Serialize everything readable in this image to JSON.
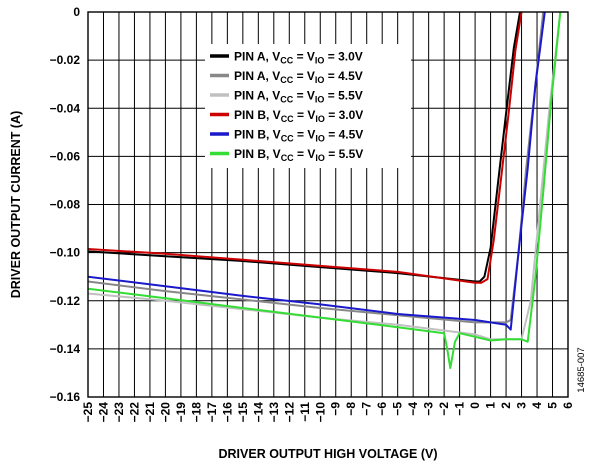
{
  "chart_data": {
    "type": "line",
    "xlabel": "DRIVER OUTPUT HIGH VOLTAGE (V)",
    "ylabel": "DRIVER OUTPUT CURRENT (A)",
    "xlim": [
      -25,
      6
    ],
    "ylim": [
      -0.16,
      0
    ],
    "x_ticks": [
      -25,
      -24,
      -23,
      -22,
      -21,
      -20,
      -19,
      -18,
      -17,
      -16,
      -15,
      -14,
      -13,
      -12,
      -11,
      -10,
      -9,
      -8,
      -7,
      -6,
      -5,
      -4,
      -3,
      -2,
      -1,
      0,
      1,
      2,
      3,
      4,
      5,
      6
    ],
    "x_tick_labels": [
      "−25",
      "−24",
      "−23",
      "−22",
      "−21",
      "−20",
      "−19",
      "−18",
      "−17",
      "−16",
      "−15",
      "−14",
      "−13",
      "−12",
      "−11",
      "−10",
      "−9",
      "−8",
      "−7",
      "−6",
      "−5",
      "−4",
      "−3",
      "−2",
      "−1",
      "0",
      "1",
      "2",
      "3",
      "4",
      "5",
      "6"
    ],
    "y_ticks": [
      0,
      -0.02,
      -0.04,
      -0.06,
      -0.08,
      -0.1,
      -0.12,
      -0.14,
      -0.16
    ],
    "y_tick_labels": [
      "0",
      "−0.02",
      "−0.04",
      "−0.06",
      "−0.08",
      "−0.10",
      "−0.12",
      "−0.14",
      "−0.16"
    ],
    "grid": true,
    "legend_position": "top-center",
    "figure_id": "14685-007",
    "series": [
      {
        "name": "PIN A, VCC = VIO = 3.0V",
        "name_parts": [
          "PIN A, V",
          "CC",
          " = V",
          "IO",
          " = 3.0V"
        ],
        "color": "#000000",
        "x": [
          -25,
          -20,
          -15,
          -10,
          -5,
          0,
          0.3,
          0.6,
          1.0,
          1.5,
          2.0,
          2.5,
          2.9
        ],
        "y": [
          -0.0995,
          -0.1015,
          -0.1035,
          -0.106,
          -0.1085,
          -0.112,
          -0.112,
          -0.11,
          -0.098,
          -0.07,
          -0.042,
          -0.015,
          0.0
        ]
      },
      {
        "name": "PIN A, VCC = VIO = 4.5V",
        "name_parts": [
          "PIN A, V",
          "CC",
          " = V",
          "IO",
          " = 4.5V"
        ],
        "color": "#888888",
        "x": [
          -25,
          -20,
          -15,
          -10,
          -5,
          0,
          1.0,
          2.0,
          2.3,
          2.8,
          3.3,
          3.9,
          4.4
        ],
        "y": [
          -0.112,
          -0.116,
          -0.1195,
          -0.123,
          -0.126,
          -0.129,
          -0.129,
          -0.129,
          -0.128,
          -0.1,
          -0.065,
          -0.03,
          0.0
        ]
      },
      {
        "name": "PIN A, VCC = VIO = 5.5V",
        "name_parts": [
          "PIN A, V",
          "CC",
          " = V",
          "IO",
          " = 5.5V"
        ],
        "color": "#c0c0c0",
        "x": [
          -25,
          -20,
          -15,
          -10,
          -5,
          0,
          1.0,
          2.0,
          3.0,
          3.6,
          4.2,
          4.8,
          5.5
        ],
        "y": [
          -0.117,
          -0.12,
          -0.1235,
          -0.127,
          -0.13,
          -0.134,
          -0.136,
          -0.136,
          -0.136,
          -0.12,
          -0.08,
          -0.04,
          0.0
        ]
      },
      {
        "name": "PIN B, VCC = VIO = 3.0V",
        "name_parts": [
          "PIN B, V",
          "CC",
          " = V",
          "IO",
          " = 3.0V"
        ],
        "color": "#cc0000",
        "x": [
          -25,
          -20,
          -15,
          -10,
          -5,
          0,
          0.4,
          0.8,
          1.2,
          1.7,
          2.2,
          2.6,
          3.0
        ],
        "y": [
          -0.0985,
          -0.1005,
          -0.103,
          -0.1055,
          -0.108,
          -0.1125,
          -0.1125,
          -0.111,
          -0.095,
          -0.068,
          -0.04,
          -0.016,
          0.0
        ]
      },
      {
        "name": "PIN B, VCC = VIO = 4.5V",
        "name_parts": [
          "PIN B, V",
          "CC",
          " = V",
          "IO",
          " = 4.5V"
        ],
        "color": "#1a1acc",
        "x": [
          -25,
          -20,
          -15,
          -10,
          -5,
          0,
          1.0,
          2.0,
          2.3,
          2.8,
          3.4,
          3.9,
          4.5
        ],
        "y": [
          -0.11,
          -0.114,
          -0.118,
          -0.1215,
          -0.1255,
          -0.128,
          -0.129,
          -0.13,
          -0.132,
          -0.1,
          -0.065,
          -0.03,
          0.0
        ]
      },
      {
        "name": "PIN B, VCC = VIO = 5.5V",
        "name_parts": [
          "PIN B, V",
          "CC",
          " = V",
          "IO",
          " = 5.5V"
        ],
        "color": "#33dd33",
        "x": [
          -25,
          -20,
          -15,
          -10,
          -5,
          -2,
          -1.8,
          -1.6,
          -1.3,
          -1.0,
          0,
          1.0,
          2.0,
          3.0,
          3.4,
          3.9,
          4.4,
          4.9,
          5.5
        ],
        "y": [
          -0.115,
          -0.119,
          -0.123,
          -0.127,
          -0.131,
          -0.1335,
          -0.14,
          -0.148,
          -0.137,
          -0.1335,
          -0.135,
          -0.1365,
          -0.136,
          -0.136,
          -0.137,
          -0.11,
          -0.075,
          -0.038,
          0.0
        ]
      }
    ]
  }
}
